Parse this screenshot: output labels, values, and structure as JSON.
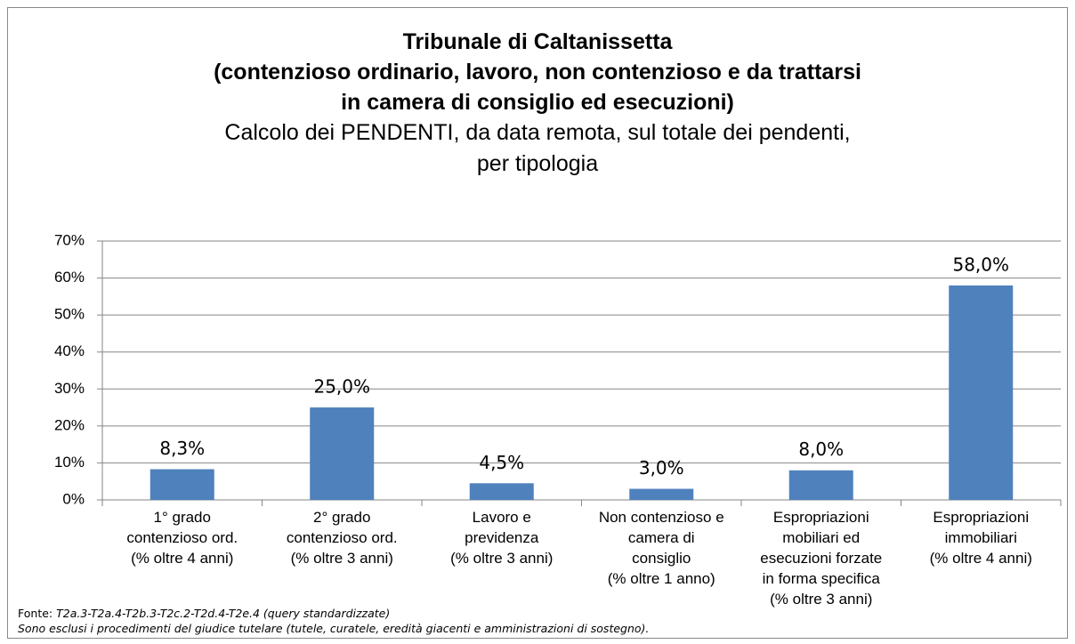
{
  "chart_data": {
    "type": "bar",
    "title": "Tribunale di Caltanissetta\n(contenzioso ordinario, lavoro, non contenzioso e da trattarsi\nin camera di consiglio ed esecuzioni)",
    "subtitle": "Calcolo dei PENDENTI, da data remota, sul totale dei pendenti,\nper tipologia",
    "categories": [
      "1° grado\ncontenzioso ord.\n(% oltre 4 anni)",
      "2° grado\ncontenzioso ord.\n(% oltre 3 anni)",
      "Lavoro e\nprevidenza\n(% oltre 3 anni)",
      "Non contenzioso e\ncamera di\nconsiglio\n(% oltre 1 anno)",
      "Espropriazioni\nmobiliari ed\nesecuzioni forzate\nin forma specifica\n(% oltre 3 anni)",
      "Espropriazioni\nimmobiliari\n(% oltre 4 anni)"
    ],
    "values": [
      8.3,
      25.0,
      4.5,
      3.0,
      8.0,
      58.0
    ],
    "value_labels": [
      "8,3%",
      "25,0%",
      "4,5%",
      "3,0%",
      "8,0%",
      "58,0%"
    ],
    "color": "#4f81bd",
    "ylim": [
      0,
      70
    ],
    "yticks": [
      {
        "value": 0,
        "label": "0%"
      },
      {
        "value": 10,
        "label": "10%"
      },
      {
        "value": 20,
        "label": "20%"
      },
      {
        "value": 30,
        "label": "30%"
      },
      {
        "value": 40,
        "label": "40%"
      },
      {
        "value": 50,
        "label": "50%"
      },
      {
        "value": 60,
        "label": "60%"
      },
      {
        "value": 70,
        "label": "70%"
      }
    ],
    "grid": true,
    "source_label": "Fonte:",
    "source": "T2a.3-T2a.4-T2b.3-T2c.2-T2d.4-T2e.4 (query standardizzate)",
    "note": "Sono esclusi i procedimenti del giudice tutelare (tutele, curatele, eredità giacenti e amministrazioni di sostegno)."
  }
}
